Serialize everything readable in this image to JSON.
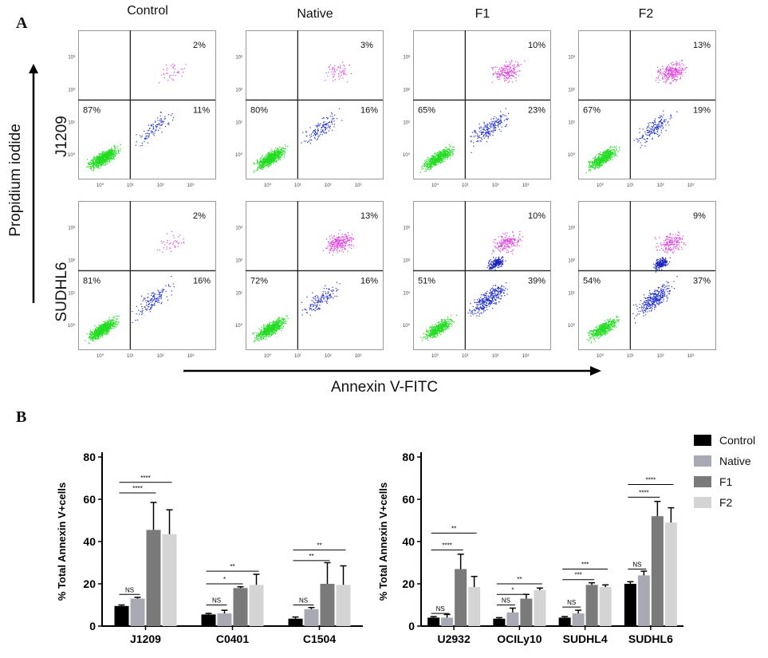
{
  "panel_a": {
    "letter": "A",
    "columns": [
      "Control",
      "Native",
      "F1",
      "F2"
    ],
    "rows": [
      "J1209",
      "SUDHL6"
    ],
    "y_axis_title": "Propidium iodide",
    "x_axis_title": "Annexin V-FITC",
    "tick_labels": [
      "10⁰",
      "10¹",
      "10²",
      "10³"
    ],
    "quadrants": [
      [
        {
          "ul": "",
          "ur": "2%",
          "ll": "87%",
          "lr": "11%"
        },
        {
          "ul": "",
          "ur": "3%",
          "ll": "80%",
          "lr": "16%"
        },
        {
          "ul": "",
          "ur": "10%",
          "ll": "65%",
          "lr": "23%"
        },
        {
          "ul": "",
          "ur": "13%",
          "ll": "67%",
          "lr": "19%"
        }
      ],
      [
        {
          "ul": "",
          "ur": "2%",
          "ll": "81%",
          "lr": "16%"
        },
        {
          "ul": "",
          "ur": "13%",
          "ll": "72%",
          "lr": "16%"
        },
        {
          "ul": "",
          "ur": "10%",
          "ll": "51%",
          "lr": "39%"
        },
        {
          "ul": "",
          "ur": "9%",
          "ll": "54%",
          "lr": "37%"
        }
      ]
    ]
  },
  "panel_b": {
    "letter": "B",
    "legend": [
      {
        "label": "Control",
        "color": "#000000"
      },
      {
        "label": "Native",
        "color": "#a9a9b3"
      },
      {
        "label": "F1",
        "color": "#7a7a7a"
      },
      {
        "label": "F2",
        "color": "#d4d4d4"
      }
    ]
  },
  "chart_data": [
    {
      "type": "bar",
      "ylabel": "% Total Annexin V+cells",
      "ylim": [
        0,
        80
      ],
      "yticks": [
        "0",
        "20",
        "40",
        "60",
        "80"
      ],
      "categories": [
        "J1209",
        "C0401",
        "C1504"
      ],
      "series": [
        {
          "name": "Control",
          "values": [
            9.5,
            5.5,
            3.5
          ],
          "errors": [
            0.5,
            0.5,
            0.8
          ]
        },
        {
          "name": "Native",
          "values": [
            13,
            6,
            8
          ],
          "errors": [
            0.6,
            1.5,
            0.8
          ]
        },
        {
          "name": "F1",
          "values": [
            45.5,
            18,
            20
          ],
          "errors": [
            13,
            0.6,
            10
          ]
        },
        {
          "name": "F2",
          "values": [
            43.5,
            19.5,
            19.5
          ],
          "errors": [
            11.5,
            5,
            9
          ]
        }
      ],
      "annotations": [
        {
          "category": 0,
          "from": 0,
          "to": 1,
          "y": 15,
          "label": "NS"
        },
        {
          "category": 0,
          "from": 0,
          "to": 2,
          "y": 63,
          "label": "****"
        },
        {
          "category": 0,
          "from": 0,
          "to": 3,
          "y": 68,
          "label": "****"
        },
        {
          "category": 1,
          "from": 0,
          "to": 1,
          "y": 10,
          "label": "NS"
        },
        {
          "category": 1,
          "from": 0,
          "to": 2,
          "y": 20,
          "label": "*"
        },
        {
          "category": 1,
          "from": 0,
          "to": 3,
          "y": 26,
          "label": "**"
        },
        {
          "category": 2,
          "from": 0,
          "to": 1,
          "y": 10,
          "label": "NS"
        },
        {
          "category": 2,
          "from": 0,
          "to": 2,
          "y": 31,
          "label": "**"
        },
        {
          "category": 2,
          "from": 0,
          "to": 3,
          "y": 36,
          "label": "**"
        }
      ]
    },
    {
      "type": "bar",
      "ylabel": "% Total Annexin V+cells",
      "ylim": [
        0,
        80
      ],
      "yticks": [
        "0",
        "20",
        "40",
        "60",
        "80"
      ],
      "categories": [
        "U2932",
        "OCILy10",
        "SUDHL4",
        "SUDHL6"
      ],
      "series": [
        {
          "name": "Control",
          "values": [
            4,
            3.5,
            4,
            20
          ],
          "errors": [
            0.5,
            0.5,
            0.5,
            1
          ]
        },
        {
          "name": "Native",
          "values": [
            4,
            6.5,
            6,
            24
          ],
          "errors": [
            1.5,
            2,
            1.5,
            2
          ]
        },
        {
          "name": "F1",
          "values": [
            27,
            13,
            19.5,
            52
          ],
          "errors": [
            7,
            2,
            1,
            7
          ]
        },
        {
          "name": "F2",
          "values": [
            18.5,
            17,
            18.5,
            49
          ],
          "errors": [
            5,
            1,
            1,
            7
          ]
        }
      ],
      "annotations": [
        {
          "category": 0,
          "from": 0,
          "to": 1,
          "y": 6,
          "label": "NS"
        },
        {
          "category": 0,
          "from": 0,
          "to": 2,
          "y": 36,
          "label": "****"
        },
        {
          "category": 0,
          "from": 0,
          "to": 3,
          "y": 44,
          "label": "**"
        },
        {
          "category": 1,
          "from": 0,
          "to": 1,
          "y": 10,
          "label": "NS"
        },
        {
          "category": 1,
          "from": 0,
          "to": 2,
          "y": 15,
          "label": "*"
        },
        {
          "category": 1,
          "from": 0,
          "to": 3,
          "y": 20,
          "label": "**"
        },
        {
          "category": 2,
          "from": 0,
          "to": 1,
          "y": 9,
          "label": "NS"
        },
        {
          "category": 2,
          "from": 0,
          "to": 2,
          "y": 22,
          "label": "***"
        },
        {
          "category": 2,
          "from": 0,
          "to": 3,
          "y": 27,
          "label": "***"
        },
        {
          "category": 3,
          "from": 0,
          "to": 1,
          "y": 27,
          "label": "NS"
        },
        {
          "category": 3,
          "from": 0,
          "to": 2,
          "y": 61,
          "label": "****"
        },
        {
          "category": 3,
          "from": 0,
          "to": 3,
          "y": 67,
          "label": "****"
        }
      ]
    }
  ]
}
